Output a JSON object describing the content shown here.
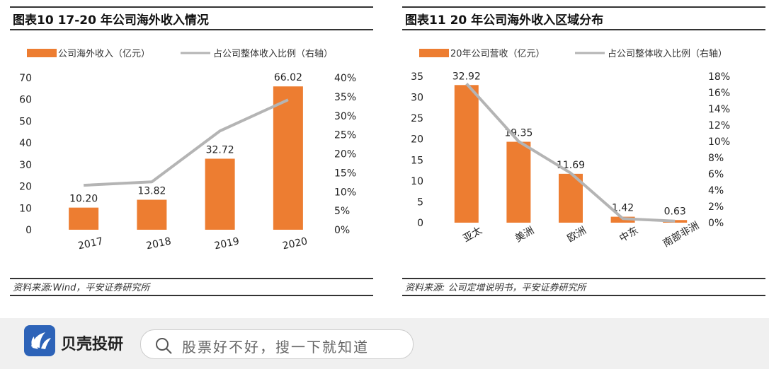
{
  "chart_data": [
    {
      "type": "bar",
      "title": "图表10    17-20 年公司海外收入情况",
      "categories": [
        "2017",
        "2018",
        "2019",
        "2020"
      ],
      "series": [
        {
          "name": "公司海外收入（亿元）",
          "type": "bar",
          "axis": "left",
          "values": [
            10.2,
            13.82,
            32.72,
            66.02
          ],
          "labels": [
            "10.20",
            "13.82",
            "32.72",
            "66.02"
          ]
        },
        {
          "name": "占公司整体收入比例（右轴）",
          "type": "line",
          "axis": "right",
          "values": [
            11.7,
            12.6,
            26,
            34.2
          ]
        }
      ],
      "ylim": [
        0,
        70
      ],
      "yticks": [
        "0",
        "10",
        "20",
        "30",
        "40",
        "50",
        "60",
        "70"
      ],
      "y2lim": [
        0,
        40
      ],
      "y2ticks": [
        "0%",
        "5%",
        "10%",
        "15%",
        "20%",
        "25%",
        "30%",
        "35%",
        "40%"
      ],
      "legend": "top",
      "source": "资料来源:Wind，平安证券研究所"
    },
    {
      "type": "bar",
      "title": "图表11    20 年公司海外收入区域分布",
      "categories": [
        "亚太",
        "美洲",
        "欧洲",
        "中东",
        "南部非洲"
      ],
      "series": [
        {
          "name": "20年公司营收（亿元）",
          "type": "bar",
          "axis": "left",
          "values": [
            32.92,
            19.35,
            11.69,
            1.42,
            0.63
          ],
          "labels": [
            "32.92",
            "19.35",
            "11.69",
            "1.42",
            "0.63"
          ]
        },
        {
          "name": "占公司整体收入比例（右轴）",
          "type": "line",
          "axis": "right",
          "values": [
            17.1,
            10,
            6.1,
            0.5,
            0.2
          ]
        }
      ],
      "ylim": [
        0,
        35
      ],
      "yticks": [
        "0",
        "5",
        "10",
        "15",
        "20",
        "25",
        "30",
        "35"
      ],
      "y2lim": [
        0,
        18
      ],
      "y2ticks": [
        "0%",
        "2%",
        "4%",
        "6%",
        "8%",
        "10%",
        "12%",
        "14%",
        "16%",
        "18%"
      ],
      "legend": "top",
      "source": "资料来源: 公司定增说明书，平安证券研究所"
    }
  ],
  "colors": {
    "bar": "#ed7d31",
    "line": "#b4b4b4"
  },
  "footer": {
    "brand": "贝壳投研",
    "search_placeholder": "股票好不好，搜一下就知道"
  }
}
